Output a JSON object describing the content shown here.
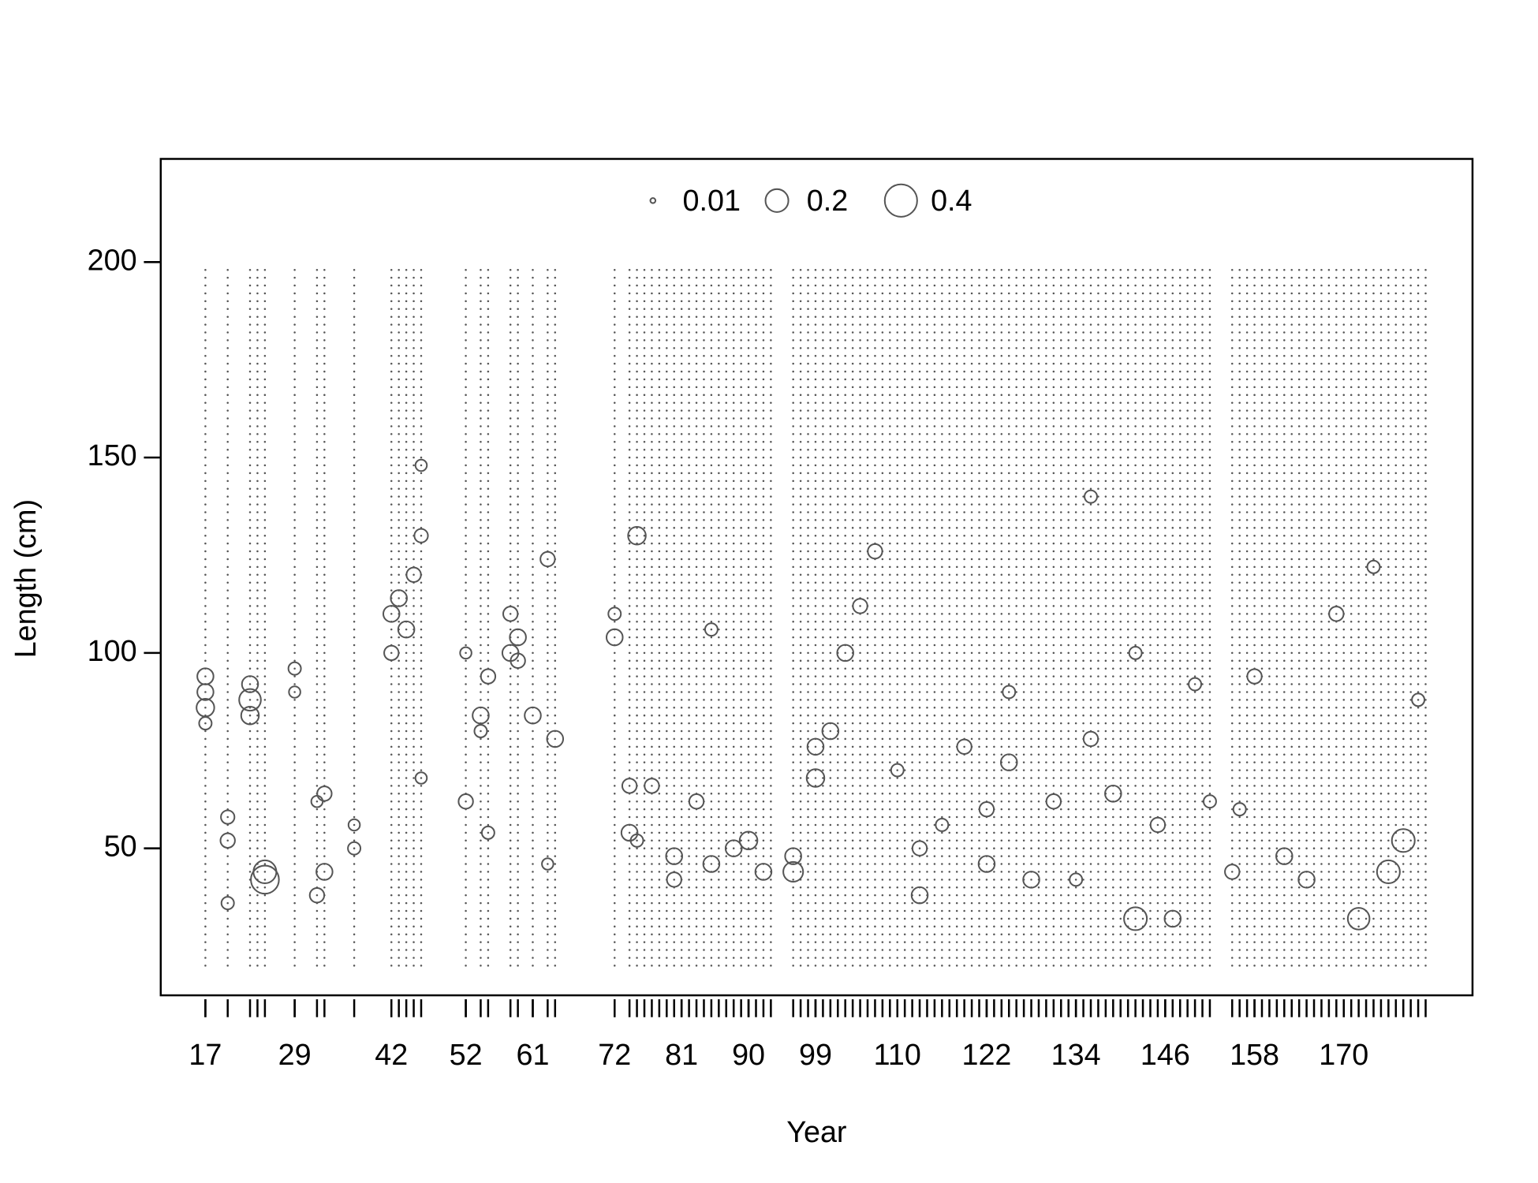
{
  "chart_data": {
    "type": "bubble",
    "xlabel": "Year",
    "ylabel": "Length (cm)",
    "xlim": [
      11,
      187.3
    ],
    "ylim": [
      12.4,
      226.4
    ],
    "xticks": [
      17,
      29,
      42,
      52,
      61,
      72,
      81,
      90,
      99,
      110,
      122,
      134,
      146,
      158,
      170
    ],
    "yticks": [
      50,
      100,
      150,
      200
    ],
    "years": [
      17,
      20,
      23,
      24,
      25,
      29,
      32,
      33,
      37,
      42,
      43,
      44,
      45,
      46,
      52,
      54,
      55,
      58,
      59,
      61,
      63,
      64,
      72,
      74,
      75,
      76,
      77,
      78,
      79,
      80,
      81,
      82,
      83,
      84,
      85,
      86,
      87,
      88,
      89,
      90,
      91,
      92,
      93,
      96,
      97,
      98,
      99,
      100,
      101,
      102,
      103,
      104,
      105,
      106,
      107,
      108,
      109,
      110,
      111,
      112,
      113,
      114,
      115,
      116,
      117,
      118,
      119,
      120,
      121,
      122,
      123,
      124,
      125,
      126,
      127,
      128,
      129,
      130,
      131,
      132,
      133,
      134,
      135,
      136,
      137,
      138,
      139,
      140,
      141,
      142,
      143,
      144,
      145,
      146,
      147,
      148,
      149,
      150,
      151,
      152,
      155,
      156,
      157,
      158,
      159,
      160,
      161,
      162,
      163,
      164,
      165,
      166,
      167,
      168,
      169,
      170,
      171,
      172,
      173,
      174,
      175,
      176,
      177,
      178,
      179,
      180,
      181
    ],
    "lengths": [
      20,
      22,
      24,
      26,
      28,
      30,
      32,
      34,
      36,
      38,
      40,
      42,
      44,
      46,
      48,
      50,
      52,
      54,
      56,
      58,
      60,
      62,
      64,
      66,
      68,
      70,
      72,
      74,
      76,
      78,
      80,
      82,
      84,
      86,
      88,
      90,
      92,
      94,
      96,
      98,
      100,
      102,
      104,
      106,
      108,
      110,
      112,
      114,
      116,
      118,
      120,
      122,
      124,
      126,
      128,
      130,
      132,
      134,
      136,
      138,
      140,
      142,
      144,
      146,
      148,
      150,
      152,
      154,
      156,
      158,
      160,
      162,
      164,
      166,
      168,
      170,
      172,
      174,
      176,
      178,
      180,
      182,
      184,
      186,
      188,
      190,
      192,
      194,
      196,
      198
    ],
    "bubbles": {
      "x": [
        17,
        17,
        17,
        17,
        20,
        20,
        20,
        23,
        23,
        23,
        25,
        25,
        29,
        29,
        32,
        32,
        33,
        33,
        37,
        37,
        42,
        42,
        43,
        44,
        45,
        46,
        46,
        46,
        52,
        52,
        54,
        54,
        55,
        55,
        58,
        58,
        59,
        59,
        61,
        63,
        63,
        64,
        72,
        72,
        74,
        74,
        75,
        75,
        77,
        80,
        80,
        83,
        85,
        85,
        88,
        90,
        92,
        96,
        96,
        99,
        99,
        101,
        103,
        105,
        107,
        110,
        113,
        113,
        116,
        119,
        122,
        122,
        125,
        125,
        128,
        131,
        134,
        136,
        136,
        139,
        142,
        142,
        145,
        147,
        150,
        152,
        155,
        156,
        158,
        162,
        165,
        169,
        172,
        174,
        176,
        178,
        180
      ],
      "y": [
        86,
        90,
        94,
        82,
        36,
        52,
        58,
        88,
        84,
        92,
        42,
        44,
        96,
        90,
        38,
        62,
        44,
        64,
        50,
        56,
        110,
        100,
        114,
        106,
        120,
        130,
        148,
        68,
        62,
        100,
        84,
        80,
        94,
        54,
        100,
        110,
        104,
        98,
        84,
        124,
        46,
        78,
        104,
        110,
        54,
        66,
        130,
        52,
        66,
        48,
        42,
        62,
        106,
        46,
        50,
        52,
        44,
        44,
        48,
        68,
        76,
        80,
        100,
        112,
        126,
        70,
        38,
        50,
        56,
        76,
        46,
        60,
        72,
        90,
        42,
        62,
        42,
        140,
        78,
        64,
        32,
        100,
        56,
        32,
        92,
        62,
        44,
        60,
        94,
        48,
        42,
        110,
        32,
        122,
        44,
        52,
        88
      ],
      "size": [
        0.12,
        0.1,
        0.1,
        0.06,
        0.06,
        0.08,
        0.07,
        0.18,
        0.12,
        0.1,
        0.3,
        0.2,
        0.06,
        0.05,
        0.08,
        0.05,
        0.1,
        0.08,
        0.06,
        0.05,
        0.1,
        0.08,
        0.1,
        0.1,
        0.08,
        0.07,
        0.05,
        0.05,
        0.08,
        0.05,
        0.1,
        0.06,
        0.08,
        0.06,
        0.1,
        0.08,
        0.1,
        0.08,
        0.1,
        0.08,
        0.05,
        0.1,
        0.1,
        0.06,
        0.1,
        0.08,
        0.12,
        0.06,
        0.08,
        0.1,
        0.08,
        0.08,
        0.06,
        0.1,
        0.1,
        0.12,
        0.1,
        0.15,
        0.1,
        0.12,
        0.1,
        0.1,
        0.1,
        0.08,
        0.08,
        0.06,
        0.1,
        0.08,
        0.06,
        0.08,
        0.1,
        0.08,
        0.1,
        0.06,
        0.1,
        0.08,
        0.06,
        0.06,
        0.08,
        0.1,
        0.2,
        0.06,
        0.08,
        0.1,
        0.06,
        0.06,
        0.08,
        0.06,
        0.08,
        0.1,
        0.1,
        0.08,
        0.18,
        0.06,
        0.2,
        0.2,
        0.06
      ]
    },
    "legend": {
      "sizes": [
        0.01,
        0.2,
        0.4
      ],
      "position": "top"
    },
    "color": "#555555"
  }
}
